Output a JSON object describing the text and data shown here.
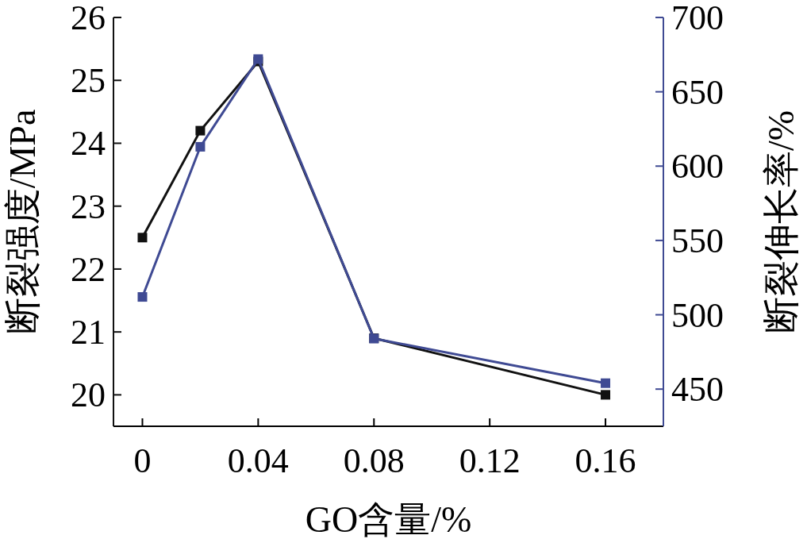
{
  "chart_data": {
    "type": "line",
    "xlabel": "GO含量/%",
    "ylabel": "断裂强度/MPa",
    "y2label": "断裂伸长率/%",
    "x": [
      0,
      0.02,
      0.04,
      0.08,
      0.16
    ],
    "series": [
      {
        "color": "#111111",
        "values": [
          22.5,
          24.2,
          25.3,
          20.9,
          20.0
        ]
      },
      {
        "color": "#3f4a93",
        "axis": "y2",
        "values": [
          512,
          613,
          672,
          484,
          454
        ]
      }
    ],
    "xlim": [
      -0.01,
      0.18
    ],
    "xticks": [
      0,
      0.04,
      0.08,
      0.12,
      0.16
    ],
    "ylim": [
      19.5,
      26
    ],
    "yticks": [
      20,
      21,
      22,
      23,
      24,
      25,
      26
    ],
    "y2lim": [
      425,
      700
    ],
    "y2ticks": [
      450,
      500,
      550,
      600,
      650,
      700
    ],
    "marker": "square",
    "line_style": "solid",
    "grid": false
  }
}
